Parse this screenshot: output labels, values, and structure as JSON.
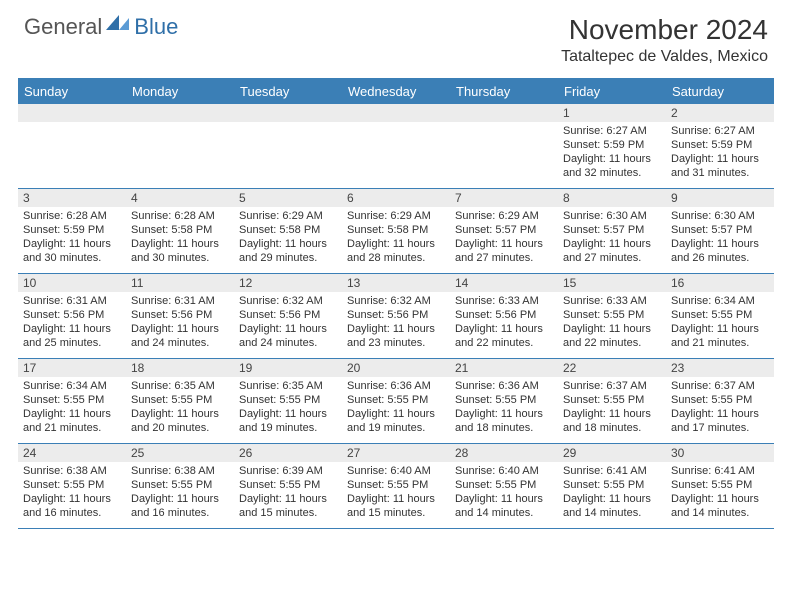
{
  "logo": {
    "general": "General",
    "blue": "Blue"
  },
  "title": "November 2024",
  "location": "Tataltepec de Valdes, Mexico",
  "colors": {
    "accent": "#3b7fb6",
    "headerRowBg": "#ececec"
  },
  "weekdays": [
    "Sunday",
    "Monday",
    "Tuesday",
    "Wednesday",
    "Thursday",
    "Friday",
    "Saturday"
  ],
  "weeks": [
    [
      {
        "n": "",
        "sr": "",
        "ss": "",
        "dl": ""
      },
      {
        "n": "",
        "sr": "",
        "ss": "",
        "dl": ""
      },
      {
        "n": "",
        "sr": "",
        "ss": "",
        "dl": ""
      },
      {
        "n": "",
        "sr": "",
        "ss": "",
        "dl": ""
      },
      {
        "n": "",
        "sr": "",
        "ss": "",
        "dl": ""
      },
      {
        "n": "1",
        "sr": "Sunrise: 6:27 AM",
        "ss": "Sunset: 5:59 PM",
        "dl": "Daylight: 11 hours and 32 minutes."
      },
      {
        "n": "2",
        "sr": "Sunrise: 6:27 AM",
        "ss": "Sunset: 5:59 PM",
        "dl": "Daylight: 11 hours and 31 minutes."
      }
    ],
    [
      {
        "n": "3",
        "sr": "Sunrise: 6:28 AM",
        "ss": "Sunset: 5:59 PM",
        "dl": "Daylight: 11 hours and 30 minutes."
      },
      {
        "n": "4",
        "sr": "Sunrise: 6:28 AM",
        "ss": "Sunset: 5:58 PM",
        "dl": "Daylight: 11 hours and 30 minutes."
      },
      {
        "n": "5",
        "sr": "Sunrise: 6:29 AM",
        "ss": "Sunset: 5:58 PM",
        "dl": "Daylight: 11 hours and 29 minutes."
      },
      {
        "n": "6",
        "sr": "Sunrise: 6:29 AM",
        "ss": "Sunset: 5:58 PM",
        "dl": "Daylight: 11 hours and 28 minutes."
      },
      {
        "n": "7",
        "sr": "Sunrise: 6:29 AM",
        "ss": "Sunset: 5:57 PM",
        "dl": "Daylight: 11 hours and 27 minutes."
      },
      {
        "n": "8",
        "sr": "Sunrise: 6:30 AM",
        "ss": "Sunset: 5:57 PM",
        "dl": "Daylight: 11 hours and 27 minutes."
      },
      {
        "n": "9",
        "sr": "Sunrise: 6:30 AM",
        "ss": "Sunset: 5:57 PM",
        "dl": "Daylight: 11 hours and 26 minutes."
      }
    ],
    [
      {
        "n": "10",
        "sr": "Sunrise: 6:31 AM",
        "ss": "Sunset: 5:56 PM",
        "dl": "Daylight: 11 hours and 25 minutes."
      },
      {
        "n": "11",
        "sr": "Sunrise: 6:31 AM",
        "ss": "Sunset: 5:56 PM",
        "dl": "Daylight: 11 hours and 24 minutes."
      },
      {
        "n": "12",
        "sr": "Sunrise: 6:32 AM",
        "ss": "Sunset: 5:56 PM",
        "dl": "Daylight: 11 hours and 24 minutes."
      },
      {
        "n": "13",
        "sr": "Sunrise: 6:32 AM",
        "ss": "Sunset: 5:56 PM",
        "dl": "Daylight: 11 hours and 23 minutes."
      },
      {
        "n": "14",
        "sr": "Sunrise: 6:33 AM",
        "ss": "Sunset: 5:56 PM",
        "dl": "Daylight: 11 hours and 22 minutes."
      },
      {
        "n": "15",
        "sr": "Sunrise: 6:33 AM",
        "ss": "Sunset: 5:55 PM",
        "dl": "Daylight: 11 hours and 22 minutes."
      },
      {
        "n": "16",
        "sr": "Sunrise: 6:34 AM",
        "ss": "Sunset: 5:55 PM",
        "dl": "Daylight: 11 hours and 21 minutes."
      }
    ],
    [
      {
        "n": "17",
        "sr": "Sunrise: 6:34 AM",
        "ss": "Sunset: 5:55 PM",
        "dl": "Daylight: 11 hours and 21 minutes."
      },
      {
        "n": "18",
        "sr": "Sunrise: 6:35 AM",
        "ss": "Sunset: 5:55 PM",
        "dl": "Daylight: 11 hours and 20 minutes."
      },
      {
        "n": "19",
        "sr": "Sunrise: 6:35 AM",
        "ss": "Sunset: 5:55 PM",
        "dl": "Daylight: 11 hours and 19 minutes."
      },
      {
        "n": "20",
        "sr": "Sunrise: 6:36 AM",
        "ss": "Sunset: 5:55 PM",
        "dl": "Daylight: 11 hours and 19 minutes."
      },
      {
        "n": "21",
        "sr": "Sunrise: 6:36 AM",
        "ss": "Sunset: 5:55 PM",
        "dl": "Daylight: 11 hours and 18 minutes."
      },
      {
        "n": "22",
        "sr": "Sunrise: 6:37 AM",
        "ss": "Sunset: 5:55 PM",
        "dl": "Daylight: 11 hours and 18 minutes."
      },
      {
        "n": "23",
        "sr": "Sunrise: 6:37 AM",
        "ss": "Sunset: 5:55 PM",
        "dl": "Daylight: 11 hours and 17 minutes."
      }
    ],
    [
      {
        "n": "24",
        "sr": "Sunrise: 6:38 AM",
        "ss": "Sunset: 5:55 PM",
        "dl": "Daylight: 11 hours and 16 minutes."
      },
      {
        "n": "25",
        "sr": "Sunrise: 6:38 AM",
        "ss": "Sunset: 5:55 PM",
        "dl": "Daylight: 11 hours and 16 minutes."
      },
      {
        "n": "26",
        "sr": "Sunrise: 6:39 AM",
        "ss": "Sunset: 5:55 PM",
        "dl": "Daylight: 11 hours and 15 minutes."
      },
      {
        "n": "27",
        "sr": "Sunrise: 6:40 AM",
        "ss": "Sunset: 5:55 PM",
        "dl": "Daylight: 11 hours and 15 minutes."
      },
      {
        "n": "28",
        "sr": "Sunrise: 6:40 AM",
        "ss": "Sunset: 5:55 PM",
        "dl": "Daylight: 11 hours and 14 minutes."
      },
      {
        "n": "29",
        "sr": "Sunrise: 6:41 AM",
        "ss": "Sunset: 5:55 PM",
        "dl": "Daylight: 11 hours and 14 minutes."
      },
      {
        "n": "30",
        "sr": "Sunrise: 6:41 AM",
        "ss": "Sunset: 5:55 PM",
        "dl": "Daylight: 11 hours and 14 minutes."
      }
    ]
  ]
}
